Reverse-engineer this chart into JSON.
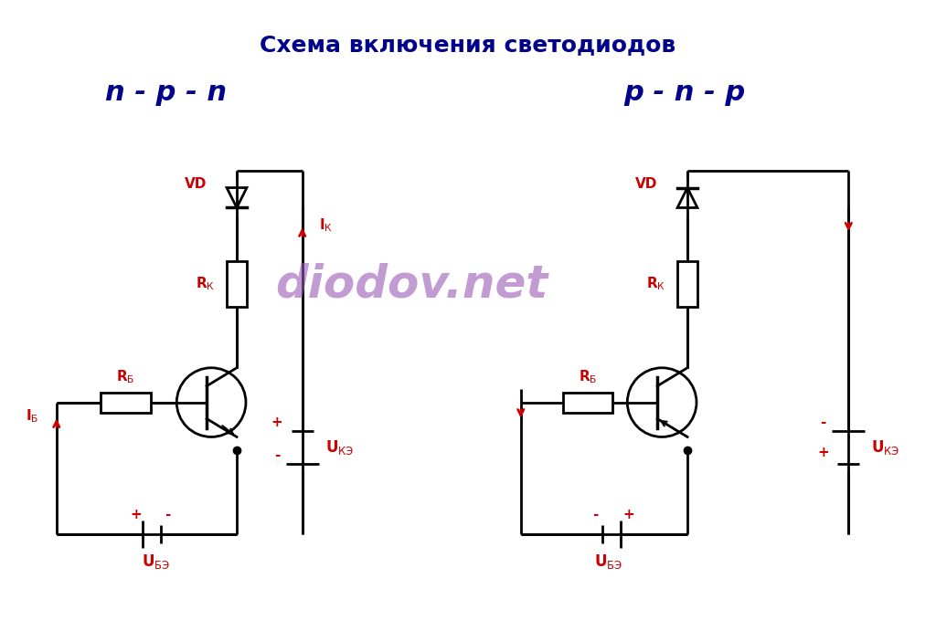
{
  "title": "Схема включения светодиодов",
  "title_color": "#00008B",
  "title_fontsize": 18,
  "npn_label": "n - p - n",
  "pnp_label": "p - n - p",
  "type_label_color": "#00008B",
  "type_label_fontsize": 22,
  "red_color": "#CC0000",
  "black_color": "#000000",
  "watermark_color": "#9B59B6",
  "watermark_text": "diodov.net",
  "watermark_fontsize": 36,
  "bg_color": "#FFFFFF"
}
